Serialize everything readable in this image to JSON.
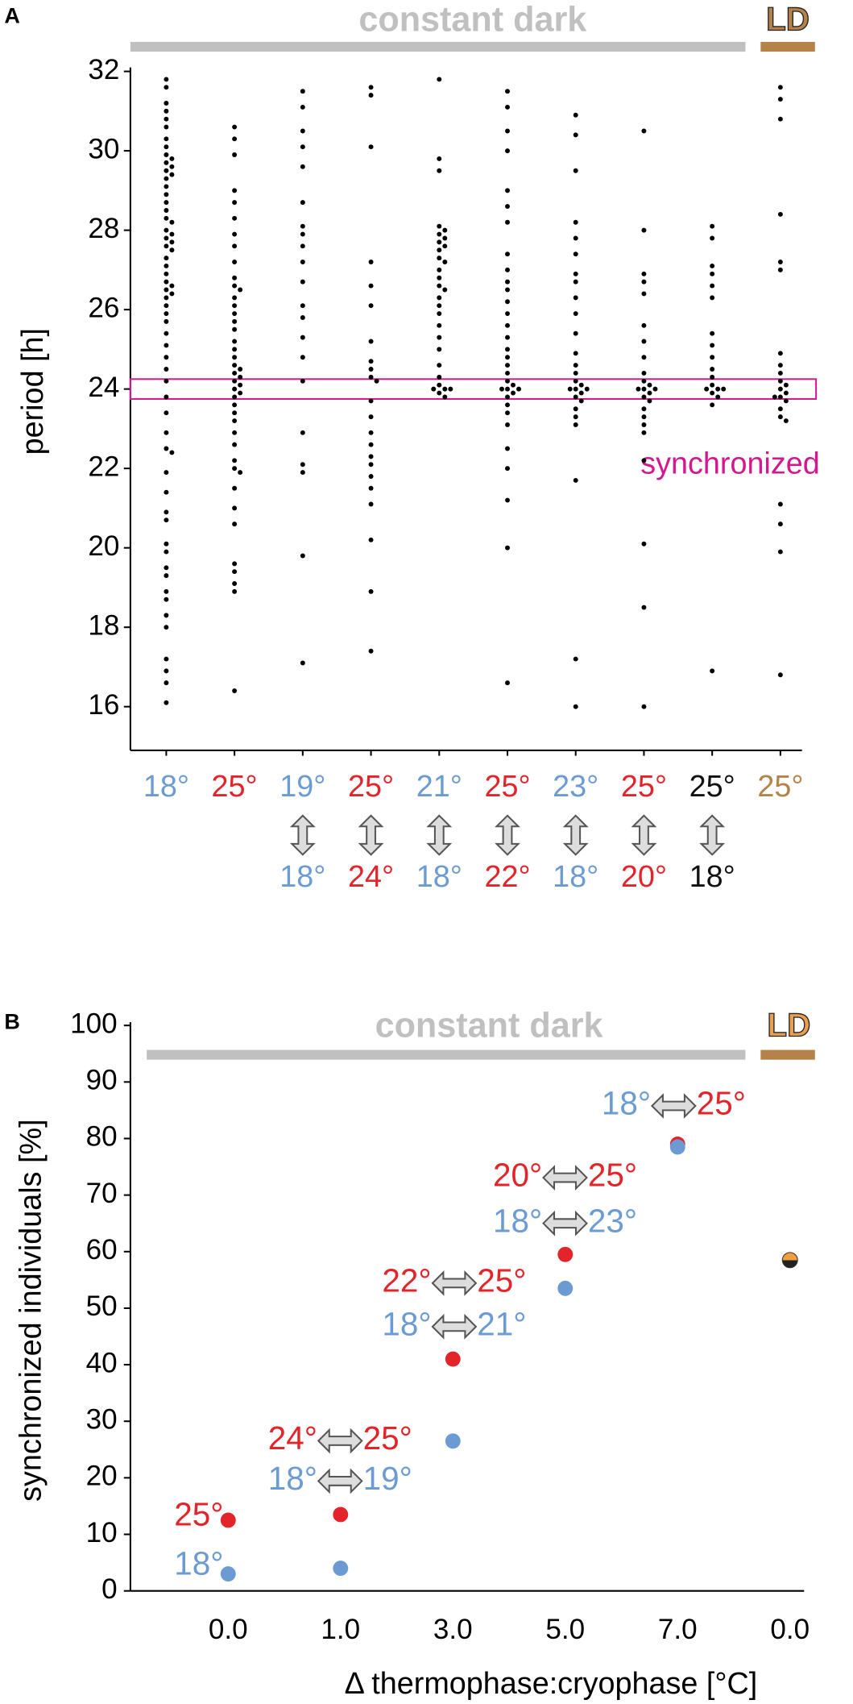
{
  "chart_data": [
    {
      "type": "strip",
      "label": "A",
      "header": "constant dark",
      "header_ld": "LD",
      "header_color": "#c0c0c0",
      "ld_color": "#b5834a",
      "ylabel": "period [h]",
      "annotation": "synchronized",
      "band": [
        23.75,
        24.25
      ],
      "band_color": "#d4178f",
      "ylim": [
        14.9,
        32.1
      ],
      "yticks": [
        16,
        18,
        20,
        22,
        24,
        26,
        28,
        30,
        32
      ],
      "color": "#000000",
      "categories": [
        "18°",
        "25°",
        "19°",
        "25°",
        "21°",
        "25°",
        "23°",
        "25°",
        "25°",
        "25°"
      ],
      "categories_bottom": [
        null,
        null,
        "18°",
        "24°",
        "18°",
        "22°",
        "18°",
        "20°",
        "18°",
        null
      ],
      "label_colors": [
        "#6b9bd2",
        "#e3242b",
        "#6b9bd2",
        "#e3242b",
        "#6b9bd2",
        "#e3242b",
        "#6b9bd2",
        "#e3242b",
        "#111111",
        "#b5834a"
      ],
      "values": [
        [
          31.8,
          31.6,
          31.2,
          31.0,
          30.8,
          30.6,
          30.3,
          30.1,
          29.9,
          29.8,
          29.7,
          29.6,
          29.5,
          29.4,
          29.3,
          29.1,
          28.9,
          28.7,
          28.5,
          28.3,
          28.2,
          28.0,
          27.9,
          27.8,
          27.7,
          27.6,
          27.5,
          27.3,
          27.1,
          26.9,
          26.7,
          26.6,
          26.5,
          26.4,
          26.3,
          26.1,
          25.9,
          25.7,
          25.4,
          25.1,
          24.8,
          24.5,
          24.2,
          23.8,
          23.4,
          22.9,
          22.5,
          22.4,
          21.9,
          21.4,
          20.9,
          20.7,
          20.1,
          19.9,
          19.5,
          19.3,
          18.9,
          18.7,
          18.3,
          18.0,
          17.2,
          16.9,
          16.6,
          16.1
        ],
        [
          30.6,
          30.3,
          29.9,
          29.0,
          28.7,
          28.3,
          27.9,
          27.6,
          27.2,
          26.8,
          26.6,
          26.5,
          26.3,
          26.1,
          25.9,
          25.7,
          25.5,
          25.2,
          25.0,
          24.8,
          24.6,
          24.5,
          24.4,
          24.3,
          24.2,
          24.1,
          24.0,
          23.9,
          23.8,
          23.6,
          23.4,
          23.2,
          22.9,
          22.6,
          22.2,
          22.0,
          21.9,
          21.5,
          21.0,
          20.6,
          19.6,
          19.4,
          19.1,
          18.9,
          16.4
        ],
        [
          31.5,
          31.1,
          30.5,
          30.1,
          29.6,
          28.7,
          28.1,
          27.9,
          27.6,
          27.2,
          26.7,
          26.1,
          25.8,
          25.3,
          24.8,
          24.2,
          22.9,
          22.1,
          21.9,
          19.8,
          17.1
        ],
        [
          31.6,
          31.4,
          30.1,
          27.2,
          26.6,
          26.1,
          25.2,
          24.7,
          24.5,
          24.3,
          24.2,
          23.7,
          23.3,
          22.9,
          22.6,
          22.3,
          22.1,
          21.8,
          21.5,
          21.1,
          20.2,
          18.9,
          17.4
        ],
        [
          31.8,
          29.8,
          29.5,
          28.1,
          28.0,
          27.9,
          27.8,
          27.7,
          27.6,
          27.5,
          27.3,
          27.2,
          27.0,
          26.8,
          26.6,
          26.5,
          26.3,
          26.1,
          25.9,
          25.6,
          25.3,
          25.0,
          24.6,
          24.3,
          24.1,
          24.0,
          24.0,
          24.0,
          23.9,
          23.8
        ],
        [
          31.5,
          31.1,
          30.5,
          30.0,
          29.0,
          28.6,
          28.2,
          27.4,
          27.0,
          26.7,
          26.5,
          26.2,
          25.9,
          25.6,
          25.3,
          25.0,
          24.8,
          24.6,
          24.4,
          24.2,
          24.1,
          24.0,
          24.0,
          24.0,
          23.9,
          23.8,
          23.6,
          23.4,
          23.1,
          22.5,
          22.0,
          21.2,
          20.0,
          16.6
        ],
        [
          30.9,
          30.4,
          29.5,
          28.2,
          27.8,
          27.4,
          26.9,
          26.7,
          26.3,
          25.9,
          25.4,
          24.9,
          24.6,
          24.4,
          24.2,
          24.1,
          24.0,
          24.0,
          24.0,
          23.9,
          23.8,
          23.7,
          23.5,
          23.3,
          23.1,
          21.7,
          17.2,
          16.0
        ],
        [
          30.5,
          28.0,
          26.9,
          26.7,
          26.4,
          25.6,
          25.2,
          24.8,
          24.4,
          24.2,
          24.1,
          24.0,
          24.0,
          24.0,
          23.9,
          23.8,
          23.7,
          23.5,
          23.3,
          23.1,
          22.9,
          22.2,
          20.1,
          18.5,
          16.0
        ],
        [
          28.1,
          27.8,
          27.1,
          26.9,
          26.6,
          26.3,
          25.4,
          25.1,
          24.8,
          24.5,
          24.3,
          24.1,
          24.0,
          24.0,
          24.0,
          23.9,
          23.8,
          23.6,
          16.9
        ],
        [
          31.6,
          31.3,
          30.8,
          28.4,
          27.2,
          27.0,
          24.9,
          24.6,
          24.4,
          24.2,
          24.1,
          24.0,
          23.9,
          23.8,
          23.8,
          23.7,
          23.5,
          23.3,
          23.2,
          21.1,
          20.6,
          19.9,
          16.8
        ]
      ]
    },
    {
      "type": "scatter",
      "label": "B",
      "header": "constant dark",
      "header_ld": "LD",
      "header_color": "#c0c0c0",
      "ld_color": "#e8a050",
      "ld_bar_color": "#b5834a",
      "ylabel": "synchronized individuals [%]",
      "xlabel": "Δ thermophase:cryophase [°C]",
      "categories": [
        "0.0",
        "1.0",
        "3.0",
        "5.0",
        "7.0",
        "0.0"
      ],
      "ylim": [
        0,
        100
      ],
      "yticks": [
        0,
        10,
        20,
        30,
        40,
        50,
        60,
        70,
        80,
        90,
        100
      ],
      "series": [
        {
          "color": "#e3242b",
          "values": [
            12.5,
            13.5,
            41,
            59.5,
            79,
            null
          ]
        },
        {
          "color": "#6b9bd2",
          "values": [
            3,
            4,
            26.5,
            53.5,
            78.5,
            null
          ]
        },
        {
          "colors": [
            "#f0a040",
            "#222222"
          ],
          "values": [
            null,
            null,
            null,
            null,
            null,
            58.5
          ]
        }
      ],
      "annotations": [
        {
          "left": "18°",
          "right": "25°",
          "colors": [
            "#6b9bd2",
            "#e3242b"
          ]
        },
        {
          "left": "20°",
          "right": "25°",
          "colors": [
            "#e3242b",
            "#e3242b"
          ]
        },
        {
          "left": "18°",
          "right": "23°",
          "colors": [
            "#6b9bd2",
            "#6b9bd2"
          ]
        },
        {
          "left": "22°",
          "right": "25°",
          "colors": [
            "#e3242b",
            "#e3242b"
          ]
        },
        {
          "left": "18°",
          "right": "21°",
          "colors": [
            "#6b9bd2",
            "#6b9bd2"
          ]
        },
        {
          "left": "24°",
          "right": "25°",
          "colors": [
            "#e3242b",
            "#e3242b"
          ]
        },
        {
          "left": "18°",
          "right": "19°",
          "colors": [
            "#6b9bd2",
            "#6b9bd2"
          ]
        },
        {
          "left": "25°",
          "colors": [
            "#e3242b"
          ]
        },
        {
          "left": "18°",
          "colors": [
            "#6b9bd2"
          ]
        }
      ]
    }
  ]
}
